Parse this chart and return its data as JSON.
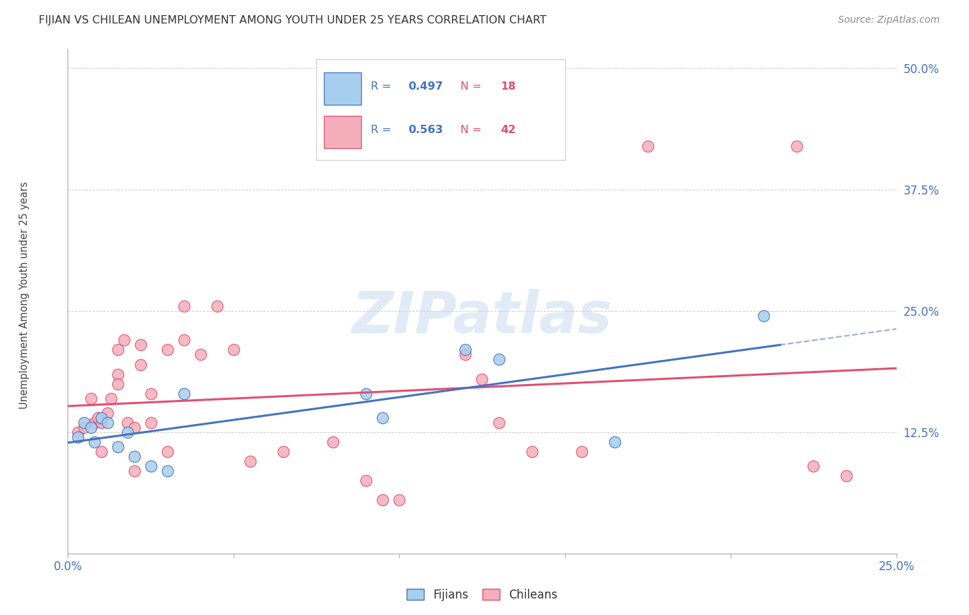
{
  "title": "FIJIAN VS CHILEAN UNEMPLOYMENT AMONG YOUTH UNDER 25 YEARS CORRELATION CHART",
  "source": "Source: ZipAtlas.com",
  "ylabel": "Unemployment Among Youth under 25 years",
  "xlim": [
    0.0,
    0.25
  ],
  "ylim": [
    0.0,
    0.52
  ],
  "fijian_color": "#A8CEED",
  "chilean_color": "#F5AEBB",
  "fijian_line_color": "#4472C4",
  "chilean_line_color": "#E05070",
  "legend_R_color": "#4472C4",
  "legend_N_color": "#E05070",
  "fijian_R": 0.497,
  "fijian_N": 18,
  "chilean_R": 0.563,
  "chilean_N": 42,
  "watermark": "ZIPatlas",
  "fijian_x": [
    0.003,
    0.005,
    0.007,
    0.008,
    0.01,
    0.012,
    0.015,
    0.018,
    0.02,
    0.025,
    0.03,
    0.035,
    0.09,
    0.095,
    0.12,
    0.13,
    0.165,
    0.21
  ],
  "fijian_y": [
    0.12,
    0.135,
    0.13,
    0.115,
    0.14,
    0.135,
    0.11,
    0.125,
    0.1,
    0.09,
    0.085,
    0.165,
    0.165,
    0.14,
    0.21,
    0.2,
    0.115,
    0.245
  ],
  "chilean_x": [
    0.003,
    0.005,
    0.007,
    0.008,
    0.009,
    0.01,
    0.01,
    0.012,
    0.013,
    0.015,
    0.015,
    0.015,
    0.017,
    0.018,
    0.02,
    0.02,
    0.022,
    0.022,
    0.025,
    0.025,
    0.03,
    0.03,
    0.035,
    0.035,
    0.04,
    0.045,
    0.05,
    0.055,
    0.065,
    0.08,
    0.09,
    0.095,
    0.1,
    0.12,
    0.125,
    0.13,
    0.14,
    0.155,
    0.175,
    0.22,
    0.225,
    0.235
  ],
  "chilean_y": [
    0.125,
    0.13,
    0.16,
    0.135,
    0.14,
    0.135,
    0.105,
    0.145,
    0.16,
    0.185,
    0.175,
    0.21,
    0.22,
    0.135,
    0.13,
    0.085,
    0.215,
    0.195,
    0.165,
    0.135,
    0.21,
    0.105,
    0.255,
    0.22,
    0.205,
    0.255,
    0.21,
    0.095,
    0.105,
    0.115,
    0.075,
    0.055,
    0.055,
    0.205,
    0.18,
    0.135,
    0.105,
    0.105,
    0.42,
    0.42,
    0.09,
    0.08
  ]
}
